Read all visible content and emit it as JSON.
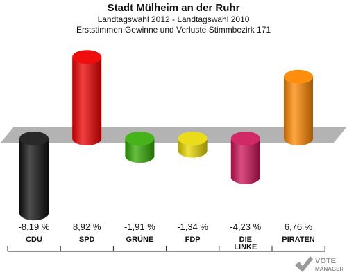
{
  "header": {
    "title": "Stadt Mülheim an der Ruhr",
    "subtitle1": "Landtagswahl 2012 - Landtagswahl 2010",
    "subtitle2": "Erststimmen Gewinne und Verluste Stimmbezirk 171"
  },
  "brand": {
    "line1": "VOTE",
    "line2": "MANAGER",
    "icon": "check-mark-icon"
  },
  "chart_data": {
    "type": "bar",
    "title": "Stadt Mülheim an der Ruhr",
    "subtitle": "Landtagswahl 2012 - Landtagswahl 2010 / Erststimmen Gewinne und Verluste Stimmbezirk 171",
    "xlabel": "",
    "ylabel": "",
    "ylim": [
      -10,
      10
    ],
    "grid": false,
    "categories": [
      "CDU",
      "SPD",
      "GRÜNE",
      "FDP",
      "DIE LINKE",
      "PIRATEN"
    ],
    "category_lines": [
      [
        "CDU"
      ],
      [
        "SPD"
      ],
      [
        "GRÜNE"
      ],
      [
        "FDP"
      ],
      [
        "DIE",
        "LINKE"
      ],
      [
        "PIRATEN"
      ]
    ],
    "values": [
      -8.19,
      8.92,
      -1.91,
      -1.34,
      -4.23,
      6.76
    ],
    "value_labels": [
      "-8,19 %",
      "8,92 %",
      "-1,91 %",
      "-1,34 %",
      "-4,23 %",
      "6,76 %"
    ],
    "colors": [
      "#111111",
      "#ee0000",
      "#33aa00",
      "#e8d800",
      "#cc1155",
      "#ff8800"
    ]
  }
}
